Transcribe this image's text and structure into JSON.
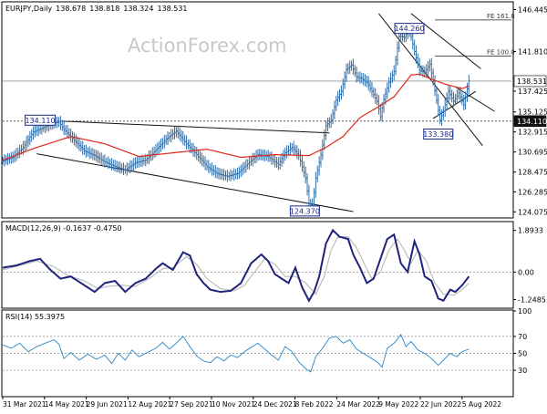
{
  "chart_data": [
    {
      "type": "line",
      "subtype": "price-ohlc-bars",
      "title": "EURJPY,Daily",
      "ohlc": {
        "open": "138.678",
        "high": "138.818",
        "low": "138.324",
        "close": "138.531"
      },
      "watermark": "ActionForex.com",
      "ylim": [
        123.5,
        147.2
      ],
      "y_ticks": [
        "146.445",
        "141.810",
        "137.425",
        "135.125",
        "132.915",
        "130.695",
        "128.475",
        "126.285",
        "124.075"
      ],
      "y_tick_values": [
        146.445,
        141.81,
        137.425,
        135.125,
        132.915,
        130.695,
        128.475,
        126.285,
        124.075
      ],
      "x_labels": [
        "31 Mar 2021",
        "14 May 2021",
        "29 Jun 2021",
        "12 Aug 2021",
        "27 Sep 2021",
        "10 Nov 2021",
        "24 Dec 2021",
        "8 Feb 2022",
        "24 Mar 2022",
        "9 May 2022",
        "22 Jun 2022",
        "5 Aug 2022"
      ],
      "price_label": "138.531",
      "hline_level_label": "134.110",
      "hline_level": 134.11,
      "price_anchors": [
        [
          0,
          129.7
        ],
        [
          6,
          130.1
        ],
        [
          12,
          131.2
        ],
        [
          18,
          132.9
        ],
        [
          24,
          133.4
        ],
        [
          30,
          133.9
        ],
        [
          33,
          134.0
        ],
        [
          36,
          133.2
        ],
        [
          42,
          132.0
        ],
        [
          48,
          130.8
        ],
        [
          54,
          130.3
        ],
        [
          60,
          129.6
        ],
        [
          66,
          129.1
        ],
        [
          72,
          128.7
        ],
        [
          78,
          129.5
        ],
        [
          84,
          129.8
        ],
        [
          90,
          130.9
        ],
        [
          96,
          132.1
        ],
        [
          102,
          133.0
        ],
        [
          108,
          131.6
        ],
        [
          114,
          130.4
        ],
        [
          120,
          129.1
        ],
        [
          126,
          128.3
        ],
        [
          132,
          128.0
        ],
        [
          138,
          128.3
        ],
        [
          144,
          129.4
        ],
        [
          150,
          130.4
        ],
        [
          156,
          130.2
        ],
        [
          162,
          129.3
        ],
        [
          166,
          130.6
        ],
        [
          170,
          131.2
        ],
        [
          174,
          130.3
        ],
        [
          178,
          127.8
        ],
        [
          180,
          125.0
        ],
        [
          182,
          124.7
        ],
        [
          184,
          127.8
        ],
        [
          187,
          130.4
        ],
        [
          190,
          133.6
        ],
        [
          193,
          134.2
        ],
        [
          196,
          136.4
        ],
        [
          199,
          137.4
        ],
        [
          202,
          139.8
        ],
        [
          205,
          140.3
        ],
        [
          208,
          139.0
        ],
        [
          211,
          138.8
        ],
        [
          214,
          138.4
        ],
        [
          217,
          137.4
        ],
        [
          220,
          136.3
        ],
        [
          222,
          134.6
        ],
        [
          224,
          136.5
        ],
        [
          227,
          138.4
        ],
        [
          230,
          139.6
        ],
        [
          233,
          143.5
        ],
        [
          236,
          143.4
        ],
        [
          239,
          144.3
        ],
        [
          242,
          141.8
        ],
        [
          245,
          139.7
        ],
        [
          248,
          139.5
        ],
        [
          251,
          140.4
        ],
        [
          254,
          137.5
        ],
        [
          257,
          134.2
        ],
        [
          259,
          135.2
        ],
        [
          262,
          137.4
        ],
        [
          265,
          136.3
        ],
        [
          268,
          137.2
        ],
        [
          271,
          135.9
        ],
        [
          274,
          138.6
        ]
      ],
      "ma_anchors": [
        [
          0,
          129.8
        ],
        [
          20,
          131.2
        ],
        [
          40,
          132.4
        ],
        [
          60,
          131.6
        ],
        [
          80,
          130.2
        ],
        [
          100,
          130.6
        ],
        [
          120,
          131.0
        ],
        [
          140,
          130.1
        ],
        [
          160,
          130.4
        ],
        [
          180,
          130.3
        ],
        [
          190,
          131.2
        ],
        [
          200,
          132.4
        ],
        [
          210,
          134.5
        ],
        [
          220,
          135.6
        ],
        [
          230,
          136.8
        ],
        [
          240,
          139.2
        ],
        [
          245,
          139.3
        ],
        [
          250,
          138.9
        ],
        [
          260,
          138.2
        ],
        [
          270,
          137.7
        ],
        [
          274,
          138.0
        ]
      ],
      "annotations": [
        "144.260",
        "134.110",
        "133.380",
        "124.370",
        "FE 161.8",
        "FE 100.0"
      ],
      "annotation_values": {
        "144.260": 144.26,
        "134.110": 134.11,
        "133.380": 133.38,
        "124.370": 124.37
      },
      "fibonacci_levels": [
        {
          "label": "FE 161.8",
          "value": 145.3
        },
        {
          "label": "FE 100.0",
          "value": 141.3
        }
      ],
      "trendlines": [
        [
          [
            35,
            134.1
          ],
          [
            192,
            132.8
          ]
        ],
        [
          [
            20,
            130.5
          ],
          [
            206,
            124.1
          ]
        ],
        [
          [
            266,
            137.9
          ],
          [
            289,
            135.2
          ]
        ],
        [
          [
            240,
            146.0
          ],
          [
            281,
            139.9
          ]
        ],
        [
          [
            221,
            146.0
          ],
          [
            282,
            131.4
          ]
        ],
        [
          [
            253,
            134.4
          ],
          [
            278,
            137.4
          ]
        ]
      ]
    },
    {
      "type": "line",
      "subtype": "macd",
      "title": "MACD(12,26,9) -0.1637 -0.4750",
      "ylim": [
        -1.6,
        2.25
      ],
      "y_ticks": [
        "1.8933",
        "0.00",
        "-1.2485"
      ],
      "y_tick_values": [
        1.8933,
        0.0,
        -1.2485
      ],
      "macd_anchors": [
        [
          0,
          0.2
        ],
        [
          8,
          0.3
        ],
        [
          16,
          0.5
        ],
        [
          22,
          0.6
        ],
        [
          28,
          0.1
        ],
        [
          34,
          -0.3
        ],
        [
          40,
          -0.2
        ],
        [
          48,
          -0.6
        ],
        [
          54,
          -0.9
        ],
        [
          60,
          -0.5
        ],
        [
          66,
          -0.4
        ],
        [
          72,
          -0.9
        ],
        [
          78,
          -0.5
        ],
        [
          84,
          -0.3
        ],
        [
          90,
          0.15
        ],
        [
          94,
          0.4
        ],
        [
          100,
          0.1
        ],
        [
          106,
          0.9
        ],
        [
          110,
          0.75
        ],
        [
          114,
          -0.1
        ],
        [
          118,
          -0.5
        ],
        [
          122,
          -0.8
        ],
        [
          128,
          -0.9
        ],
        [
          134,
          -0.85
        ],
        [
          140,
          -0.5
        ],
        [
          146,
          0.4
        ],
        [
          152,
          0.8
        ],
        [
          156,
          0.5
        ],
        [
          160,
          -0.1
        ],
        [
          164,
          -0.3
        ],
        [
          168,
          -0.5
        ],
        [
          172,
          0.2
        ],
        [
          176,
          -0.7
        ],
        [
          180,
          -1.3
        ],
        [
          183,
          -0.9
        ],
        [
          186,
          -0.2
        ],
        [
          190,
          1.3
        ],
        [
          194,
          1.9
        ],
        [
          198,
          1.6
        ],
        [
          203,
          1.5
        ],
        [
          206,
          0.8
        ],
        [
          210,
          0.2
        ],
        [
          214,
          -0.5
        ],
        [
          218,
          -0.3
        ],
        [
          222,
          0.6
        ],
        [
          226,
          1.5
        ],
        [
          230,
          1.7
        ],
        [
          234,
          0.4
        ],
        [
          238,
          0.0
        ],
        [
          242,
          1.4
        ],
        [
          245,
          0.8
        ],
        [
          248,
          -0.2
        ],
        [
          252,
          -0.4
        ],
        [
          256,
          -1.2
        ],
        [
          259,
          -1.3
        ],
        [
          263,
          -0.8
        ],
        [
          266,
          -0.9
        ],
        [
          270,
          -0.6
        ],
        [
          274,
          -0.2
        ]
      ],
      "signal_anchors": [
        [
          0,
          0.1
        ],
        [
          10,
          0.3
        ],
        [
          20,
          0.5
        ],
        [
          30,
          0.25
        ],
        [
          38,
          -0.15
        ],
        [
          48,
          -0.4
        ],
        [
          56,
          -0.75
        ],
        [
          62,
          -0.65
        ],
        [
          70,
          -0.6
        ],
        [
          78,
          -0.65
        ],
        [
          86,
          -0.3
        ],
        [
          94,
          0.15
        ],
        [
          100,
          0.2
        ],
        [
          108,
          0.7
        ],
        [
          114,
          0.35
        ],
        [
          120,
          -0.3
        ],
        [
          128,
          -0.75
        ],
        [
          136,
          -0.85
        ],
        [
          142,
          -0.6
        ],
        [
          148,
          0.0
        ],
        [
          154,
          0.6
        ],
        [
          160,
          0.35
        ],
        [
          166,
          -0.2
        ],
        [
          172,
          -0.2
        ],
        [
          178,
          -0.5
        ],
        [
          184,
          -1.0
        ],
        [
          189,
          -0.2
        ],
        [
          193,
          1.0
        ],
        [
          197,
          1.6
        ],
        [
          203,
          1.6
        ],
        [
          208,
          1.1
        ],
        [
          213,
          0.3
        ],
        [
          217,
          -0.3
        ],
        [
          222,
          0.0
        ],
        [
          227,
          1.0
        ],
        [
          232,
          1.5
        ],
        [
          236,
          1.0
        ],
        [
          240,
          0.4
        ],
        [
          244,
          1.0
        ],
        [
          249,
          0.5
        ],
        [
          254,
          -0.5
        ],
        [
          259,
          -1.0
        ],
        [
          265,
          -1.05
        ],
        [
          270,
          -0.8
        ],
        [
          274,
          -0.5
        ]
      ]
    },
    {
      "type": "line",
      "subtype": "rsi",
      "title": "RSI(14) 55.3975",
      "ylim": [
        0,
        100
      ],
      "y_ticks": [
        "100",
        "70",
        "50",
        "30"
      ],
      "y_tick_values": [
        100,
        70,
        50,
        30
      ],
      "rsi_anchors": [
        [
          0,
          60
        ],
        [
          5,
          56
        ],
        [
          10,
          62
        ],
        [
          15,
          52
        ],
        [
          20,
          58
        ],
        [
          25,
          62
        ],
        [
          30,
          66
        ],
        [
          33,
          61
        ],
        [
          36,
          44
        ],
        [
          40,
          51
        ],
        [
          45,
          42
        ],
        [
          50,
          49
        ],
        [
          55,
          43
        ],
        [
          60,
          48
        ],
        [
          64,
          38
        ],
        [
          68,
          50
        ],
        [
          72,
          42
        ],
        [
          76,
          54
        ],
        [
          80,
          46
        ],
        [
          85,
          51
        ],
        [
          90,
          56
        ],
        [
          94,
          63
        ],
        [
          98,
          55
        ],
        [
          102,
          62
        ],
        [
          106,
          70
        ],
        [
          110,
          58
        ],
        [
          114,
          47
        ],
        [
          118,
          41
        ],
        [
          122,
          39
        ],
        [
          126,
          46
        ],
        [
          130,
          41
        ],
        [
          134,
          48
        ],
        [
          138,
          45
        ],
        [
          142,
          52
        ],
        [
          146,
          57
        ],
        [
          150,
          62
        ],
        [
          154,
          55
        ],
        [
          158,
          48
        ],
        [
          162,
          42
        ],
        [
          166,
          58
        ],
        [
          170,
          52
        ],
        [
          174,
          40
        ],
        [
          178,
          32
        ],
        [
          181,
          28
        ],
        [
          184,
          46
        ],
        [
          188,
          56
        ],
        [
          192,
          68
        ],
        [
          196,
          70
        ],
        [
          200,
          62
        ],
        [
          204,
          66
        ],
        [
          208,
          55
        ],
        [
          212,
          50
        ],
        [
          216,
          45
        ],
        [
          220,
          40
        ],
        [
          223,
          34
        ],
        [
          226,
          56
        ],
        [
          230,
          62
        ],
        [
          234,
          72
        ],
        [
          237,
          58
        ],
        [
          240,
          64
        ],
        [
          244,
          54
        ],
        [
          248,
          50
        ],
        [
          252,
          44
        ],
        [
          256,
          36
        ],
        [
          259,
          42
        ],
        [
          263,
          50
        ],
        [
          267,
          46
        ],
        [
          270,
          52
        ],
        [
          274,
          55
        ]
      ]
    }
  ]
}
